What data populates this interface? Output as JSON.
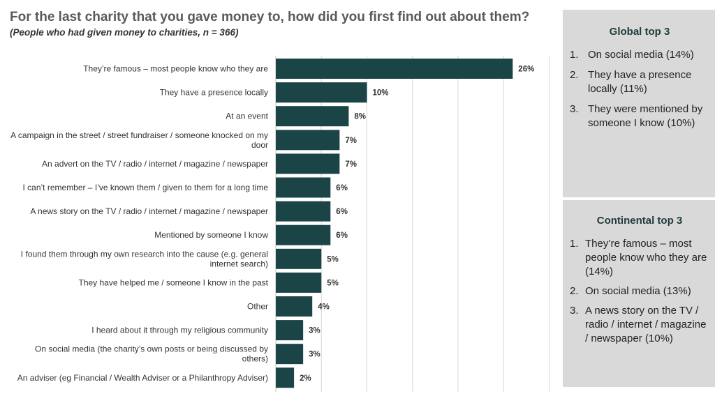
{
  "header": {
    "title": "For the last charity that you gave money to, how did you first find out about them?",
    "subtitle": "(People who had given money to charities, n = 366)"
  },
  "chart_data": {
    "type": "bar",
    "orientation": "horizontal",
    "bar_color": "#1a4445",
    "grid": true,
    "xlim": [
      0,
      30
    ],
    "categories": [
      [
        "They’re famous – most people know who they are"
      ],
      [
        "They have a presence locally"
      ],
      [
        "At an event"
      ],
      [
        "A campaign in the street / street fundraiser / someone knocked on my",
        "door"
      ],
      [
        "An advert on the TV / radio / internet / magazine / newspaper"
      ],
      [
        "I can’t remember – I’ve known them / given to them for a long time"
      ],
      [
        "A news story on the TV / radio / internet / magazine / newspaper"
      ],
      [
        "Mentioned by someone I know"
      ],
      [
        "I found them through my own research into the cause (e.g. general",
        "internet search)"
      ],
      [
        "They have helped me / someone I know in the past"
      ],
      [
        "Other"
      ],
      [
        "I heard about it through my religious community"
      ],
      [
        "On social media (the charity’s own posts or being discussed by",
        "others)"
      ],
      [
        "An adviser (eg Financial / Wealth Adviser or a Philanthropy Adviser)"
      ]
    ],
    "values": [
      26,
      10,
      8,
      7,
      7,
      6,
      6,
      6,
      5,
      5,
      4,
      3,
      3,
      2
    ],
    "value_labels": [
      "26%",
      "10%",
      "8%",
      "7%",
      "7%",
      "6%",
      "6%",
      "6%",
      "5%",
      "5%",
      "4%",
      "3%",
      "3%",
      "2%"
    ]
  },
  "global_panel": {
    "heading": "Global top 3",
    "items": [
      {
        "num": "1.",
        "text": "On social media (14%)"
      },
      {
        "num": "2.",
        "text": "They have a presence locally (11%)"
      },
      {
        "num": "3.",
        "text": "They were mentioned by someone I know (10%)"
      }
    ]
  },
  "continental_panel": {
    "heading": "Continental top 3",
    "items": [
      {
        "num": "1.",
        "text": "They’re famous – most people know who they are (14%)"
      },
      {
        "num": "2.",
        "text": "On social media (13%)"
      },
      {
        "num": "3.",
        "text": "A news story on the TV / radio / internet / magazine / newspaper (10%)"
      }
    ]
  }
}
